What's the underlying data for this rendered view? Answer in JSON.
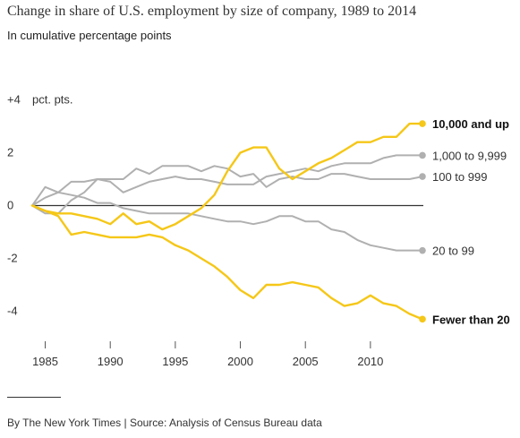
{
  "header": {
    "title": "Change in share of U.S. employment by size of company, 1989 to 2014",
    "subtitle": "In cumulative percentage points"
  },
  "footer": {
    "source": "By The New York Times | Source: Analysis of Census Bureau data"
  },
  "chart_data": {
    "type": "line",
    "ylim": [
      -5,
      4
    ],
    "xlim": [
      1984,
      2014
    ],
    "y_ticks": [
      {
        "value": 4,
        "label": "+4"
      },
      {
        "value": 2,
        "label": "2"
      },
      {
        "value": 0,
        "label": "0"
      },
      {
        "value": -2,
        "label": "-2"
      },
      {
        "value": -4,
        "label": "-4"
      }
    ],
    "y_unit_label": "pct. pts.",
    "x_ticks": [
      {
        "value": 1985,
        "label": "1985"
      },
      {
        "value": 1990,
        "label": "1990"
      },
      {
        "value": 1995,
        "label": "1995"
      },
      {
        "value": 2000,
        "label": "2000"
      },
      {
        "value": 2005,
        "label": "2005"
      },
      {
        "value": 2010,
        "label": "2010"
      }
    ],
    "grid": false,
    "zero_line": true,
    "colors": {
      "highlight": "#F5C718",
      "muted": "#B0B0B0",
      "zero": "#333333"
    },
    "series": [
      {
        "name": "10,000 and up",
        "color": "#F5C718",
        "bold": true,
        "x": [
          1984,
          1985,
          1986,
          1987,
          1988,
          1989,
          1990,
          1991,
          1992,
          1993,
          1994,
          1995,
          1996,
          1997,
          1998,
          1999,
          2000,
          2001,
          2002,
          2003,
          2004,
          2005,
          2006,
          2007,
          2008,
          2009,
          2010,
          2011,
          2012,
          2013,
          2014
        ],
        "y": [
          0,
          -0.2,
          -0.3,
          -0.3,
          -0.4,
          -0.5,
          -0.7,
          -0.3,
          -0.7,
          -0.6,
          -0.9,
          -0.7,
          -0.4,
          -0.1,
          0.4,
          1.3,
          2.0,
          2.2,
          2.2,
          1.4,
          1.0,
          1.3,
          1.6,
          1.8,
          2.1,
          2.4,
          2.4,
          2.6,
          2.6,
          3.1,
          3.1
        ]
      },
      {
        "name": "1,000 to 9,999",
        "color": "#B0B0B0",
        "bold": false,
        "x": [
          1984,
          1985,
          1986,
          1987,
          1988,
          1989,
          1990,
          1991,
          1992,
          1993,
          1994,
          1995,
          1996,
          1997,
          1998,
          1999,
          2000,
          2001,
          2002,
          2003,
          2004,
          2005,
          2006,
          2007,
          2008,
          2009,
          2010,
          2011,
          2012,
          2013,
          2014
        ],
        "y": [
          0,
          -0.3,
          -0.3,
          0.2,
          0.5,
          1.0,
          0.9,
          0.5,
          0.7,
          0.9,
          1.0,
          1.1,
          1.0,
          1.0,
          0.9,
          0.8,
          0.8,
          0.8,
          1.1,
          1.2,
          1.3,
          1.4,
          1.3,
          1.5,
          1.6,
          1.6,
          1.6,
          1.8,
          1.9,
          1.9,
          1.9
        ]
      },
      {
        "name": "100 to 999",
        "color": "#B0B0B0",
        "bold": false,
        "x": [
          1984,
          1985,
          1986,
          1987,
          1988,
          1989,
          1990,
          1991,
          1992,
          1993,
          1994,
          1995,
          1996,
          1997,
          1998,
          1999,
          2000,
          2001,
          2002,
          2003,
          2004,
          2005,
          2006,
          2007,
          2008,
          2009,
          2010,
          2011,
          2012,
          2013,
          2014
        ],
        "y": [
          0,
          0.7,
          0.5,
          0.9,
          0.9,
          1.0,
          1.0,
          1.0,
          1.4,
          1.2,
          1.5,
          1.5,
          1.5,
          1.3,
          1.5,
          1.4,
          1.1,
          1.2,
          0.7,
          1.0,
          1.1,
          1.0,
          1.0,
          1.2,
          1.2,
          1.1,
          1.0,
          1.0,
          1.0,
          1.0,
          1.1
        ]
      },
      {
        "name": "20 to 99",
        "color": "#B0B0B0",
        "bold": false,
        "x": [
          1984,
          1985,
          1986,
          1987,
          1988,
          1989,
          1990,
          1991,
          1992,
          1993,
          1994,
          1995,
          1996,
          1997,
          1998,
          1999,
          2000,
          2001,
          2002,
          2003,
          2004,
          2005,
          2006,
          2007,
          2008,
          2009,
          2010,
          2011,
          2012,
          2013,
          2014
        ],
        "y": [
          0,
          0.3,
          0.5,
          0.4,
          0.3,
          0.1,
          0.1,
          -0.1,
          -0.2,
          -0.3,
          -0.3,
          -0.3,
          -0.3,
          -0.4,
          -0.5,
          -0.6,
          -0.6,
          -0.7,
          -0.6,
          -0.4,
          -0.4,
          -0.6,
          -0.6,
          -0.9,
          -1.0,
          -1.3,
          -1.5,
          -1.6,
          -1.7,
          -1.7,
          -1.7
        ]
      },
      {
        "name": "Fewer than 20",
        "color": "#F5C718",
        "bold": true,
        "x": [
          1984,
          1985,
          1986,
          1987,
          1988,
          1989,
          1990,
          1991,
          1992,
          1993,
          1994,
          1995,
          1996,
          1997,
          1998,
          1999,
          2000,
          2001,
          2002,
          2003,
          2004,
          2005,
          2006,
          2007,
          2008,
          2009,
          2010,
          2011,
          2012,
          2013,
          2014
        ],
        "y": [
          0,
          -0.2,
          -0.4,
          -1.1,
          -1.0,
          -1.1,
          -1.2,
          -1.2,
          -1.2,
          -1.1,
          -1.2,
          -1.5,
          -1.7,
          -2.0,
          -2.3,
          -2.7,
          -3.2,
          -3.5,
          -3.0,
          -3.0,
          -2.9,
          -3.0,
          -3.1,
          -3.5,
          -3.8,
          -3.7,
          -3.4,
          -3.7,
          -3.8,
          -4.1,
          -4.3
        ]
      }
    ]
  }
}
